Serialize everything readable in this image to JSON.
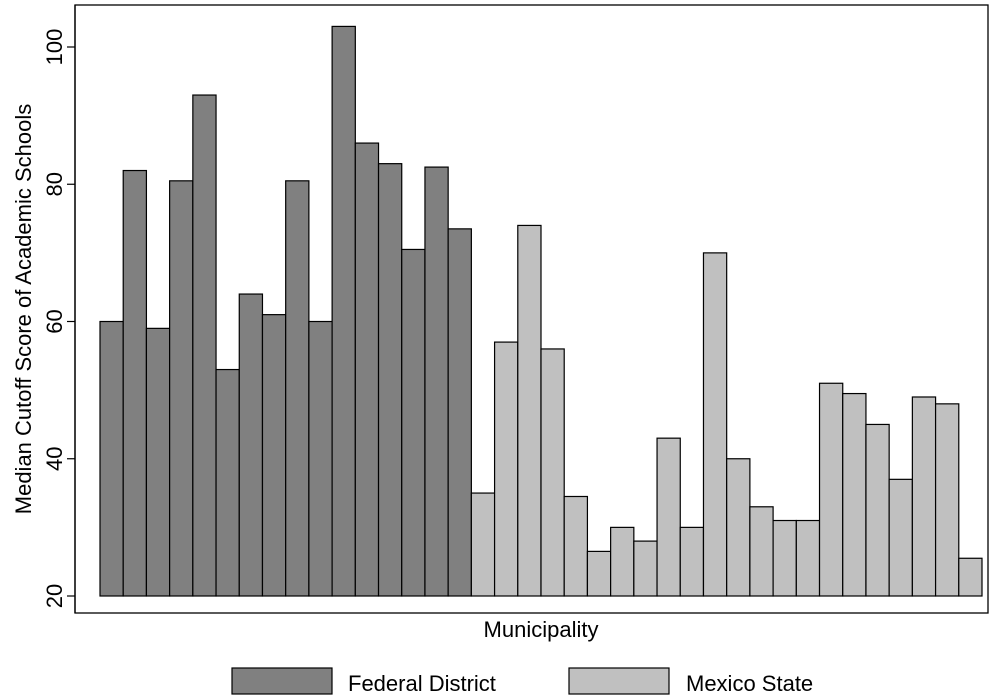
{
  "chart_data": {
    "type": "bar",
    "title": "",
    "xlabel": "Municipality",
    "ylabel": "Median Cutoff Score of Academic Schools",
    "ylim": [
      20,
      105
    ],
    "yticks": [
      20,
      40,
      60,
      80,
      100
    ],
    "grid": false,
    "legend_position": "bottom",
    "series": [
      {
        "name": "Federal District",
        "color": "#808080",
        "values": [
          60,
          82,
          59,
          80.5,
          93,
          53,
          64,
          61,
          80.5,
          60,
          103,
          86,
          83,
          70.5,
          82.5,
          73.5
        ]
      },
      {
        "name": "Mexico State",
        "color": "#c0c0c0",
        "values": [
          35,
          57,
          74,
          56,
          34.5,
          26.5,
          30,
          28,
          43,
          30,
          70,
          40,
          33,
          31,
          31,
          51,
          49.5,
          45,
          37,
          49,
          48,
          25.5
        ]
      }
    ]
  }
}
